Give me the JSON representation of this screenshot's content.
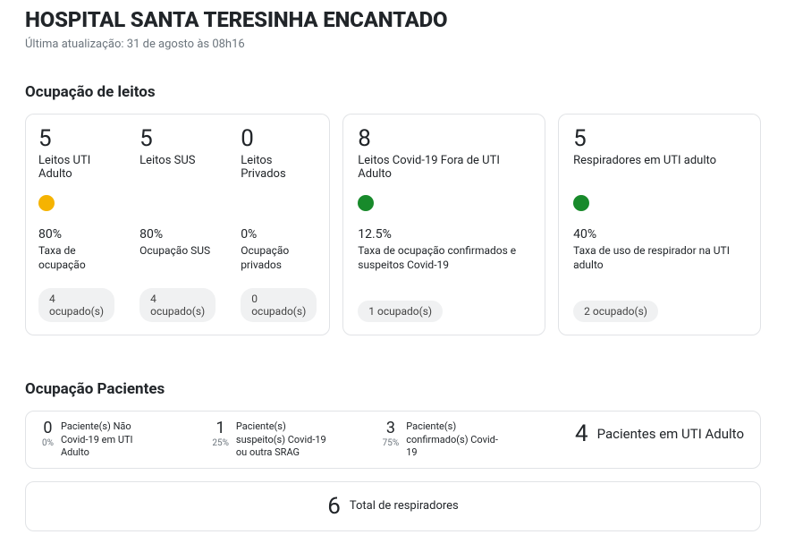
{
  "colors": {
    "amber": "#f5b301",
    "green": "#188a2b"
  },
  "header": {
    "title": "HOSPITAL SANTA TERESINHA ENCANTADO",
    "last_update": "Última atualização: 31 de agosto às 08h16"
  },
  "beds": {
    "section_title": "Ocupação de leitos",
    "group1": {
      "col1": {
        "count": "5",
        "label": "Leitos UTI Adulto",
        "dot_color": "#f5b301",
        "pct": "80%",
        "pct_label": "Taxa de ocupação",
        "pill": "4 ocupado(s)"
      },
      "col2": {
        "count": "5",
        "label": "Leitos SUS",
        "pct": "80%",
        "pct_label": "Ocupação SUS",
        "pill": "4 ocupado(s)"
      },
      "col3": {
        "count": "0",
        "label": "Leitos Privados",
        "pct": "0%",
        "pct_label": "Ocupação privados",
        "pill": "0 ocupado(s)"
      }
    },
    "card2": {
      "count": "8",
      "label": "Leitos Covid-19 Fora de UTI Adulto",
      "dot_color": "#188a2b",
      "pct": "12.5%",
      "pct_label": "Taxa de ocupação confirmados e suspeitos Covid-19",
      "pill": "1 ocupado(s)"
    },
    "card3": {
      "count": "5",
      "label": "Respiradores em UTI adulto",
      "dot_color": "#188a2b",
      "pct": "40%",
      "pct_label": "Taxa de uso de respirador na UTI adulto",
      "pill": "2 ocupado(s)"
    }
  },
  "patients": {
    "section_title": "Ocupação Pacientes",
    "p1": {
      "count": "0",
      "mini": "0%",
      "desc": "Paciente(s) Não Covid-19 em UTI Adulto"
    },
    "p2": {
      "count": "1",
      "mini": "25%",
      "desc": "Paciente(s) suspeito(s) Covid-19 ou outra SRAG"
    },
    "p3": {
      "count": "3",
      "mini": "75%",
      "desc": "Paciente(s) confirmado(s) Covid-19"
    },
    "total": {
      "count": "4",
      "desc": "Pacientes em UTI Adulto"
    }
  },
  "respirators": {
    "count": "6",
    "desc": "Total de respiradores"
  }
}
